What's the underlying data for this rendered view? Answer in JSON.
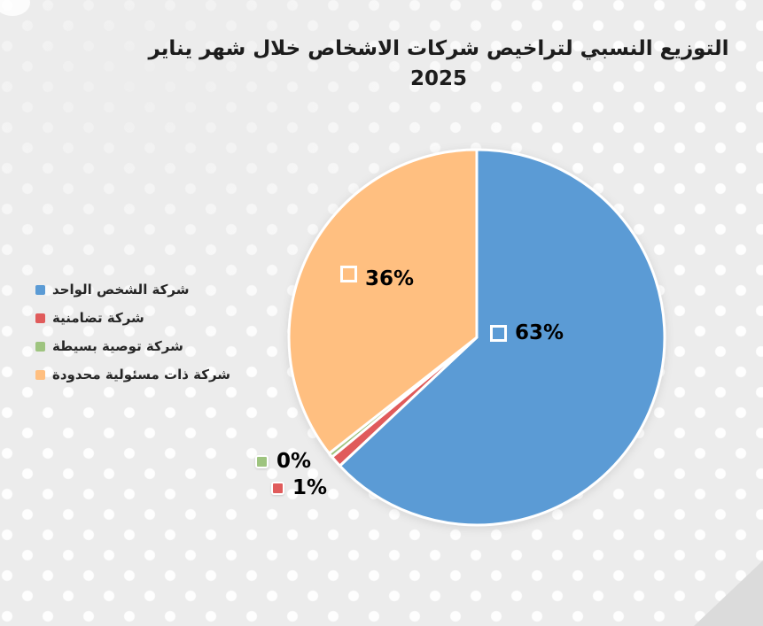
{
  "title": "التوزيع النسبي لتراخيص شركات الاشخاص خلال شهر يناير 2025",
  "chart_data": {
    "type": "pie",
    "title": "التوزيع النسبي لتراخيص شركات الاشخاص خلال شهر يناير 2025",
    "legend_position": "left",
    "start_angle_deg": 0,
    "rotation": "clockwise",
    "slice_border_color": "#FFFFFF",
    "slices": [
      {
        "label": "شركة الشخص الواحد",
        "value_pct": 63,
        "display": "63%",
        "color": "#5B9BD5",
        "sweep_deg": 226.8
      },
      {
        "label": "شركة تضامنية",
        "value_pct": 1,
        "display": "1%",
        "color": "#E05B5B",
        "sweep_deg": 3.6
      },
      {
        "label": "شركة توصية بسيطة",
        "value_pct": 0,
        "display": "0%",
        "color": "#9EC47F",
        "sweep_deg": 1.4
      },
      {
        "label": "شركة ذات مسئولية محدودة",
        "value_pct": 36,
        "display": "36%",
        "color": "#FFBF80",
        "sweep_deg": 128.2
      }
    ]
  },
  "theme": {
    "background": "#ECECEC",
    "dot_color": "#FFFFFF",
    "title_color": "#1C1C1C",
    "label_color": "#000000",
    "corner_fold_color": "#DBDBDB"
  }
}
